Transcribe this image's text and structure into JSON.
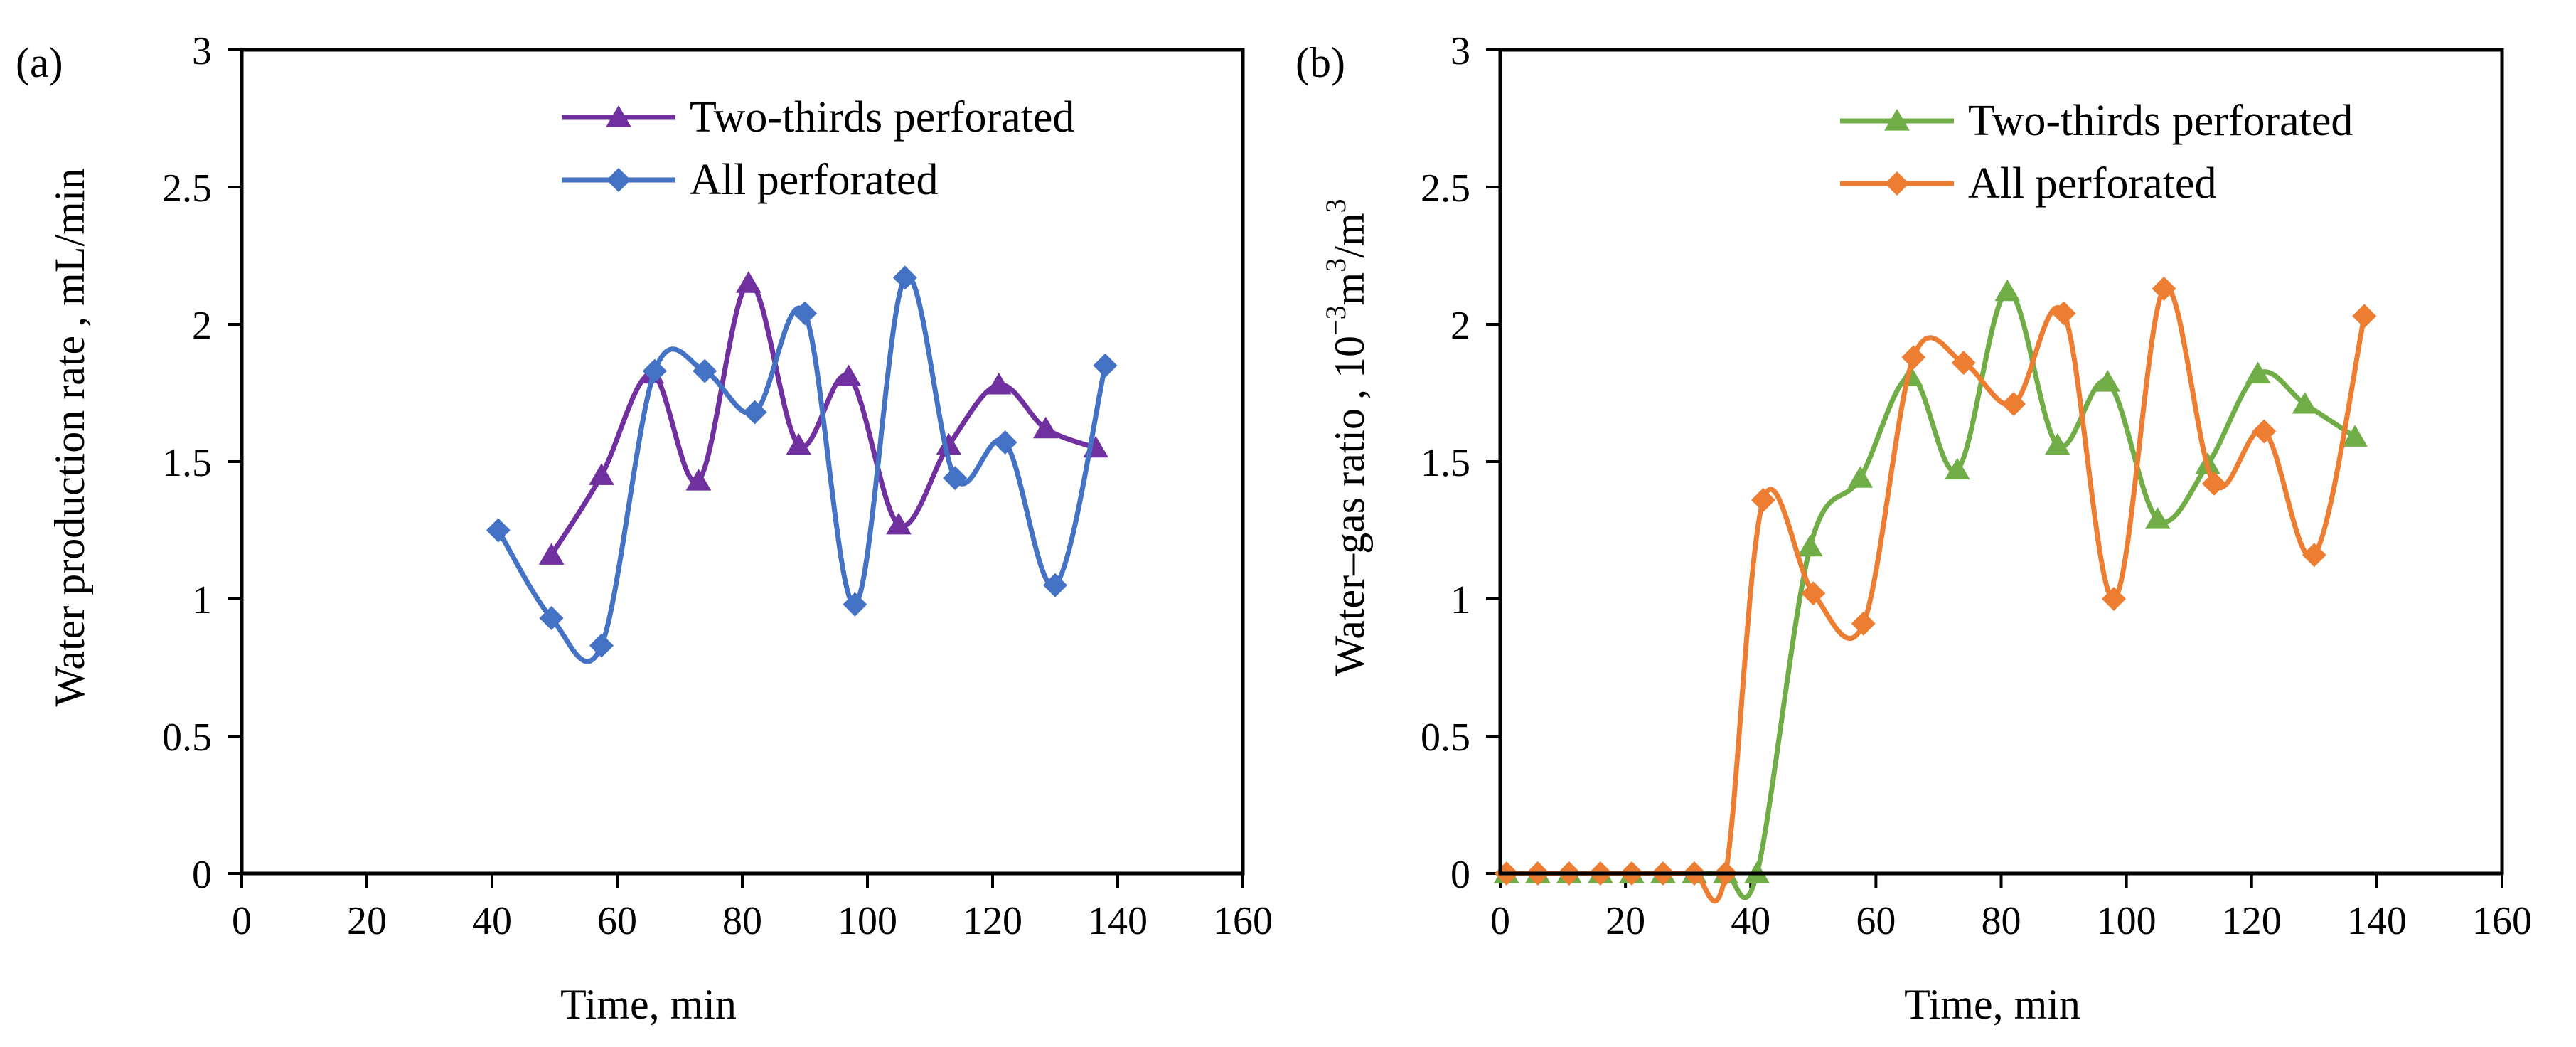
{
  "chart_data": [
    {
      "type": "line",
      "panel_label": "(a)",
      "title": "",
      "xlabel": "Time, min",
      "ylabel": "Water production rate , mL/min",
      "xlim": [
        0,
        160
      ],
      "ylim": [
        0,
        3
      ],
      "xticks": [
        0,
        20,
        40,
        60,
        80,
        100,
        120,
        140,
        160
      ],
      "yticks": [
        0,
        0.5,
        1,
        1.5,
        2,
        2.5,
        3
      ],
      "xtick_labels": [
        "0",
        "20",
        "40",
        "60",
        "80",
        "100",
        "120",
        "140",
        "160"
      ],
      "ytick_labels": [
        "0",
        "0.5",
        "1",
        "1.5",
        "2",
        "2.5",
        "3"
      ],
      "grid": false,
      "legend_position": "top-right",
      "series": [
        {
          "name": "Two-thirds perforated",
          "color": "#7030A0",
          "marker": "triangle",
          "x": [
            49.5,
            57.5,
            65.5,
            73,
            81,
            89,
            97,
            105,
            113,
            121,
            128.5,
            136.5
          ],
          "y": [
            1.16,
            1.45,
            1.82,
            1.43,
            2.15,
            1.56,
            1.81,
            1.27,
            1.56,
            1.78,
            1.62,
            1.55
          ]
        },
        {
          "name": "All perforated",
          "color": "#4472C4",
          "marker": "diamond",
          "x": [
            41,
            49.5,
            57.5,
            66,
            74,
            82,
            90,
            98,
            106,
            114,
            122,
            130,
            138
          ],
          "y": [
            1.25,
            0.93,
            0.83,
            1.83,
            1.83,
            1.68,
            2.04,
            0.98,
            2.17,
            1.44,
            1.57,
            1.05,
            1.85
          ]
        }
      ]
    },
    {
      "type": "line",
      "panel_label": "(b)",
      "title": "",
      "xlabel": "Time, min",
      "ylabel_prefix": "Water–gas ratio , 10",
      "ylabel_sup1": "−3",
      "ylabel_mid1": "m",
      "ylabel_sup2": "3",
      "ylabel_mid2": "/m",
      "ylabel_sup3": "3",
      "xlim": [
        0,
        160
      ],
      "ylim": [
        0,
        3
      ],
      "xticks": [
        0,
        20,
        40,
        60,
        80,
        100,
        120,
        140,
        160
      ],
      "yticks": [
        0,
        0.5,
        1,
        1.5,
        2,
        2.5,
        3
      ],
      "xtick_labels": [
        "0",
        "20",
        "40",
        "60",
        "80",
        "100",
        "120",
        "140",
        "160"
      ],
      "ytick_labels": [
        "0",
        "0.5",
        "1",
        "1.5",
        "2",
        "2.5",
        "3"
      ],
      "grid": false,
      "legend_position": "top-right",
      "series": [
        {
          "name": "Two-thirds perforated",
          "color": "#70AD47",
          "marker": "triangle",
          "x": [
            1,
            6,
            11,
            16,
            21,
            26,
            31,
            36,
            41,
            49.5,
            57.5,
            65.5,
            73,
            81,
            89,
            97,
            105,
            113,
            121,
            128.5,
            136.5
          ],
          "y": [
            0,
            0,
            0,
            0,
            0,
            0,
            0,
            0,
            0,
            1.19,
            1.44,
            1.81,
            1.47,
            2.12,
            1.56,
            1.79,
            1.29,
            1.49,
            1.82,
            1.71,
            1.59
          ]
        },
        {
          "name": "All perforated",
          "color": "#ED7D31",
          "marker": "diamond",
          "x": [
            1,
            6,
            11,
            16,
            21,
            26,
            31,
            36,
            42,
            50,
            58,
            66,
            74,
            82,
            90,
            98,
            106,
            114,
            122,
            130,
            138
          ],
          "y": [
            0,
            0,
            0,
            0,
            0,
            0,
            0,
            0,
            1.36,
            1.02,
            0.91,
            1.88,
            1.86,
            1.71,
            2.04,
            1.0,
            2.13,
            1.42,
            1.61,
            1.16,
            2.03
          ]
        }
      ]
    }
  ]
}
